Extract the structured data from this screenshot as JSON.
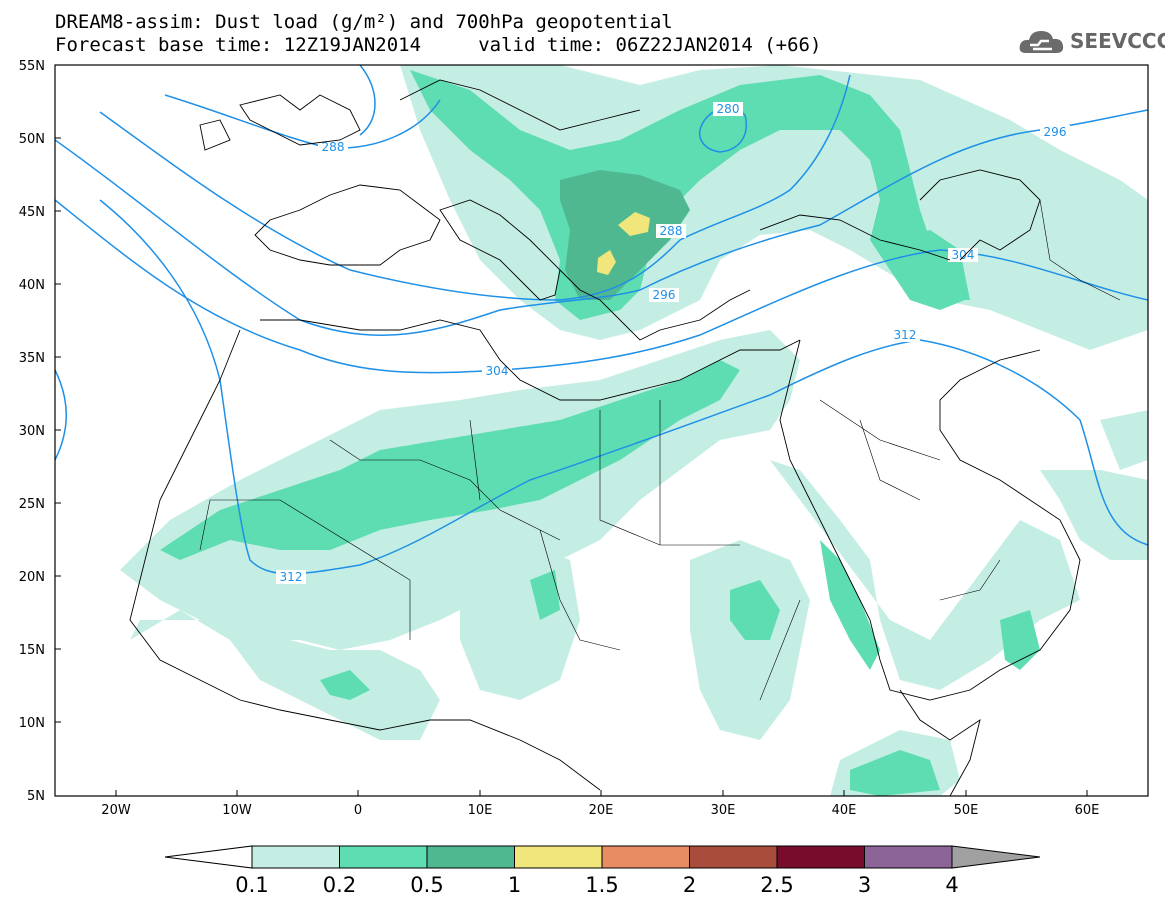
{
  "header": {
    "title_line1": "DREAM8-assim: Dust load (g/m²) and 700hPa geopotential",
    "title_line2": "Forecast base time: 12Z19JAN2014     valid time: 06Z22JAN2014 (+66)",
    "logo_text": "SEEVCCC"
  },
  "map": {
    "lon_range": [
      -25,
      65
    ],
    "lat_range": [
      5,
      55
    ],
    "lat_labels": [
      "55N",
      "50N",
      "45N",
      "40N",
      "35N",
      "30N",
      "25N",
      "20N",
      "15N",
      "10N",
      "5N"
    ],
    "lon_labels": [
      "20W",
      "10W",
      "0",
      "10E",
      "20E",
      "30E",
      "40E",
      "50E",
      "60E"
    ],
    "contour_labels": [
      "280",
      "288",
      "288",
      "296",
      "296",
      "304",
      "304",
      "312",
      "312"
    ]
  },
  "colorbar": {
    "levels": [
      "0.1",
      "0.2",
      "0.5",
      "1",
      "1.5",
      "2",
      "2.5",
      "3",
      "4"
    ],
    "colors": [
      "#c4eee4",
      "#5edcb2",
      "#50b890",
      "#f0e67c",
      "#e88c64",
      "#a84c3c",
      "#780c2c",
      "#8c6498",
      "#a0a0a0"
    ]
  }
}
